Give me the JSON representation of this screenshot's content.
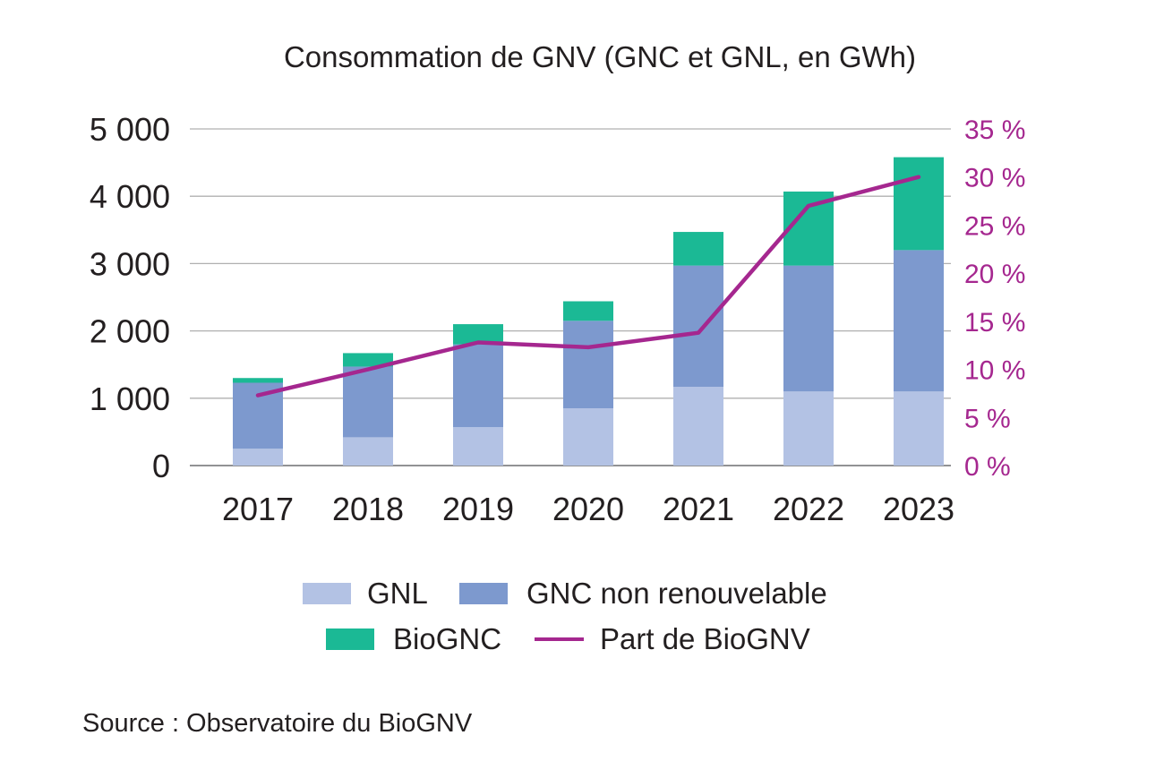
{
  "chart_data": {
    "type": "bar",
    "subtype": "stacked-bar-with-line",
    "title": "Consommation de GNV (GNC et GNL, en GWh)",
    "categories": [
      "2017",
      "2018",
      "2019",
      "2020",
      "2021",
      "2022",
      "2023"
    ],
    "series": [
      {
        "name": "GNL",
        "kind": "bar",
        "axis": "left",
        "color": "#b3c2e4",
        "values": [
          250,
          420,
          570,
          850,
          1170,
          1100,
          1100
        ]
      },
      {
        "name": "GNC non renouvelable",
        "kind": "bar",
        "axis": "left",
        "color": "#7d99ce",
        "values": [
          980,
          1050,
          1230,
          1300,
          1800,
          1870,
          2100
        ]
      },
      {
        "name": "BioGNC",
        "kind": "bar",
        "axis": "left",
        "color": "#1bb995",
        "values": [
          70,
          200,
          300,
          290,
          500,
          1100,
          1380
        ]
      },
      {
        "name": "Part de BioGNV",
        "kind": "line",
        "axis": "right",
        "color": "#a5278f",
        "values": [
          7.3,
          10.0,
          12.8,
          12.3,
          13.8,
          27.0,
          30.0
        ]
      }
    ],
    "yaxis_left": {
      "ylim": [
        0,
        5000
      ],
      "ticks": [
        "0",
        "1 000",
        "2 000",
        "3 000",
        "4 000",
        "5 000"
      ],
      "tick_values": [
        0,
        1000,
        2000,
        3000,
        4000,
        5000
      ]
    },
    "yaxis_right": {
      "ylim": [
        0,
        35
      ],
      "ticks": [
        "0 %",
        "5 %",
        "10 %",
        "15 %",
        "20 %",
        "25 %",
        "30 %",
        "35 %"
      ],
      "tick_values": [
        0,
        5,
        10,
        15,
        20,
        25,
        30,
        35
      ],
      "color": "#a5278f"
    },
    "grid": true,
    "legend_placement": "bottom",
    "source": "Source : Observatoire du BioGNV"
  }
}
